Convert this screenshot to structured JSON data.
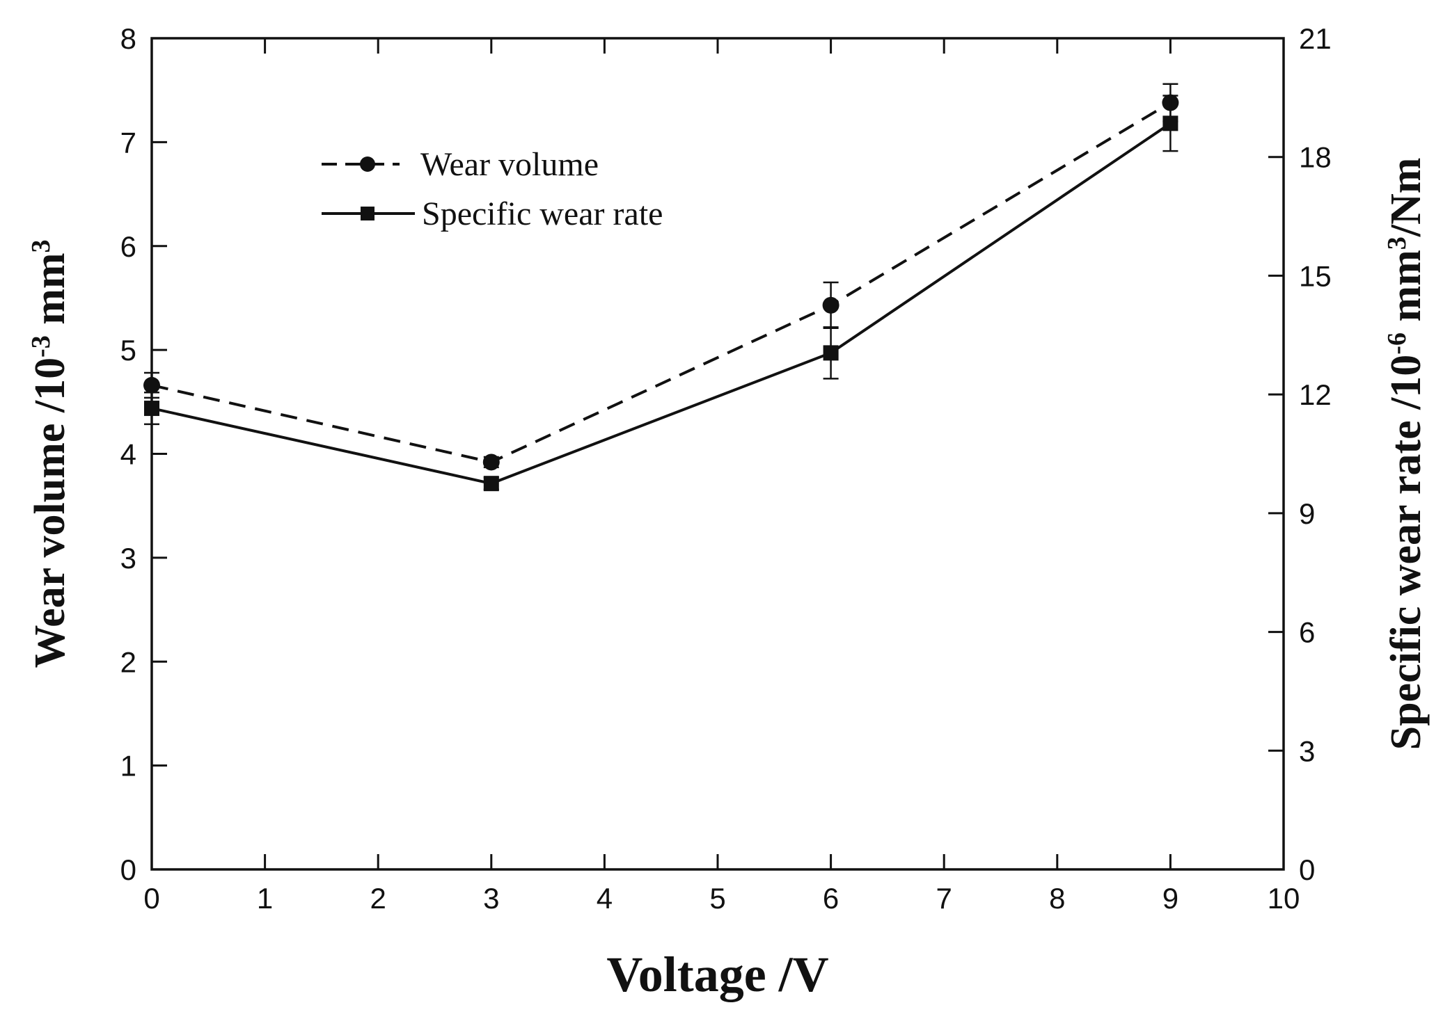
{
  "chart_data": {
    "type": "line",
    "title": "",
    "x": [
      0,
      3,
      6,
      9
    ],
    "xlim": [
      0,
      10
    ],
    "x_ticks": [
      "0",
      "1",
      "2",
      "3",
      "4",
      "5",
      "6",
      "7",
      "8",
      "9",
      "10"
    ],
    "xlabel": "Voltage /V",
    "ylim_left": [
      0,
      8
    ],
    "y_ticks_left": [
      "0",
      "1",
      "2",
      "3",
      "4",
      "5",
      "6",
      "7",
      "8"
    ],
    "ylabel_left": {
      "prefix": "Wear volume /10",
      "sup1": "-3",
      "middle": " mm",
      "sup2": "3",
      "suffix": ""
    },
    "ylim_right": [
      0,
      21
    ],
    "y_ticks_right": [
      "0",
      "3",
      "6",
      "9",
      "12",
      "15",
      "18",
      "21"
    ],
    "ylabel_right": {
      "prefix": "Specific wear rate /10",
      "sup1": "-6",
      "middle": " mm",
      "sup2": "3",
      "suffix": "/Nm"
    },
    "grid": false,
    "legend_position": "top-left",
    "series": [
      {
        "name": "Wear volume",
        "axis": "left",
        "line_style": "dashed",
        "marker": "circle",
        "values": [
          4.66,
          3.92,
          5.43,
          7.38
        ],
        "errors": [
          0.12,
          0.05,
          0.22,
          0.18
        ]
      },
      {
        "name": "Specific wear rate",
        "axis": "right",
        "line_style": "solid",
        "marker": "square",
        "values": [
          11.65,
          9.75,
          13.05,
          18.85
        ],
        "errors": [
          0.4,
          0.15,
          0.65,
          0.7
        ]
      }
    ]
  }
}
